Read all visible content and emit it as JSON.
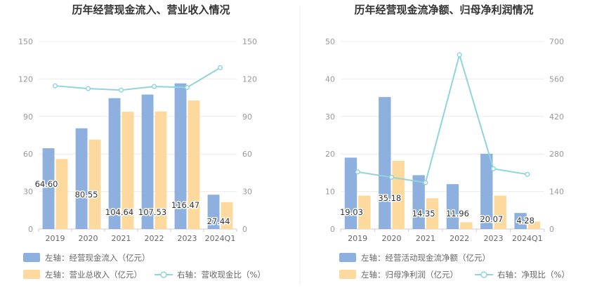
{
  "chart_data": [
    {
      "type": "bar",
      "title": "历年经营现金流入、营业收入情况",
      "categories": [
        "2019",
        "2020",
        "2021",
        "2022",
        "2023",
        "2024Q1"
      ],
      "left_axis": {
        "range": [
          0,
          150
        ],
        "ticks": [
          "0",
          "30",
          "60",
          "90",
          "120",
          "150"
        ]
      },
      "right_axis": {
        "range": [
          0,
          150
        ],
        "ticks": [
          "0",
          "30",
          "60",
          "90",
          "120",
          "150"
        ]
      },
      "series": [
        {
          "name": "左轴：经营现金流入（亿元）",
          "type": "bar",
          "axis": "left",
          "color": "#8eb0de",
          "values": [
            64.6,
            80.55,
            104.64,
            107.53,
            116.47,
            27.44
          ],
          "labels": [
            "64.60",
            "80.55",
            "104.64",
            "107.53",
            "116.47",
            "27.44"
          ]
        },
        {
          "name": "左轴：营业总收入（亿元）",
          "type": "bar",
          "axis": "left",
          "color": "#fdd99e",
          "values": [
            56.0,
            71.5,
            93.8,
            94.0,
            102.8,
            21.5
          ]
        },
        {
          "name": "右轴：营收现金比（%）",
          "type": "line",
          "axis": "right",
          "color": "#8fd5dc",
          "values": [
            114.5,
            112.3,
            111.1,
            114.0,
            113.2,
            129.0
          ]
        }
      ]
    },
    {
      "type": "bar",
      "title": "历年经营现金流净额、归母净利润情况",
      "categories": [
        "2019",
        "2020",
        "2021",
        "2022",
        "2023",
        "2024Q1"
      ],
      "left_axis": {
        "range": [
          0,
          50
        ],
        "ticks": [
          "0",
          "10",
          "20",
          "30",
          "40",
          "50"
        ]
      },
      "right_axis": {
        "range": [
          0,
          700
        ],
        "ticks": [
          "0",
          "140",
          "280",
          "420",
          "560",
          "700"
        ]
      },
      "series": [
        {
          "name": "左轴：经营活动现金流净额（亿元）",
          "type": "bar",
          "axis": "left",
          "color": "#8eb0de",
          "values": [
            19.03,
            35.18,
            14.35,
            11.96,
            20.07,
            4.28
          ],
          "labels": [
            "19.03",
            "35.18",
            "14.35",
            "11.96",
            "20.07",
            "4.28"
          ]
        },
        {
          "name": "左轴：归母净利润（亿元）",
          "type": "bar",
          "axis": "left",
          "color": "#fdd99e",
          "values": [
            8.9,
            18.2,
            8.2,
            1.8,
            8.9,
            2.0
          ]
        },
        {
          "name": "右轴：净现比（%）",
          "type": "line",
          "axis": "right",
          "color": "#8fd5dc",
          "values": [
            213,
            193,
            173,
            650,
            225,
            204
          ]
        }
      ]
    }
  ]
}
